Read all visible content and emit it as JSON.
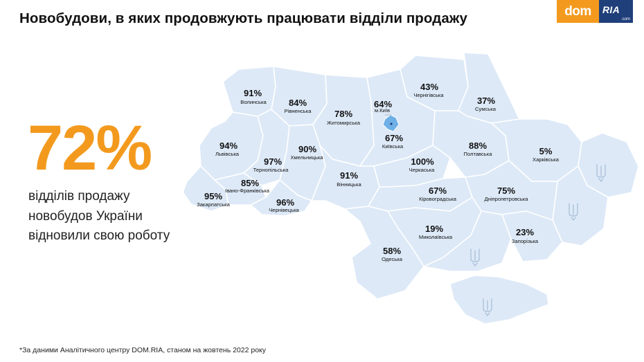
{
  "header": {
    "title": "Новобудови, в яких продовжують працювати відділи продажу"
  },
  "logo": {
    "dom": "dom",
    "ria": "RIA",
    "com": ".com"
  },
  "summary": {
    "value": "72%",
    "lines": [
      "відділів продажу",
      "новобудов України",
      "відновили свою роботу"
    ]
  },
  "footnote": "*За даними Аналітичного центру DOM.RIA, станом на жовтень 2022 року",
  "colors": {
    "accent": "#f39a1e",
    "logo_blue": "#1f3f7a",
    "region_fill": "#dde9f7",
    "region_border": "#ffffff",
    "kyiv_city": "#6fb0e6"
  },
  "regions": [
    {
      "name": "Волинська",
      "value": "91%"
    },
    {
      "name": "Рівненська",
      "value": "84%"
    },
    {
      "name": "Житомирська",
      "value": "78%"
    },
    {
      "name": "м.Київ",
      "value": "64%"
    },
    {
      "name": "Київська",
      "value": "67%"
    },
    {
      "name": "Чернігівська",
      "value": "43%"
    },
    {
      "name": "Сумська",
      "value": "37%"
    },
    {
      "name": "Львівська",
      "value": "94%"
    },
    {
      "name": "Тернопільська",
      "value": "97%"
    },
    {
      "name": "Хмельницька",
      "value": "90%"
    },
    {
      "name": "Вінницька",
      "value": "91%"
    },
    {
      "name": "Черкаська",
      "value": "100%"
    },
    {
      "name": "Полтавська",
      "value": "88%"
    },
    {
      "name": "Харківська",
      "value": "5%"
    },
    {
      "name": "Закарпатська",
      "value": "95%"
    },
    {
      "name": "Івано-Франківська",
      "value": "85%"
    },
    {
      "name": "Чернівецька",
      "value": "96%"
    },
    {
      "name": "Кіровоградська",
      "value": "67%"
    },
    {
      "name": "Дніпропетровська",
      "value": "75%"
    },
    {
      "name": "Миколаївська",
      "value": "19%"
    },
    {
      "name": "Одеська",
      "value": "58%"
    },
    {
      "name": "Запорізька",
      "value": "23%"
    }
  ]
}
